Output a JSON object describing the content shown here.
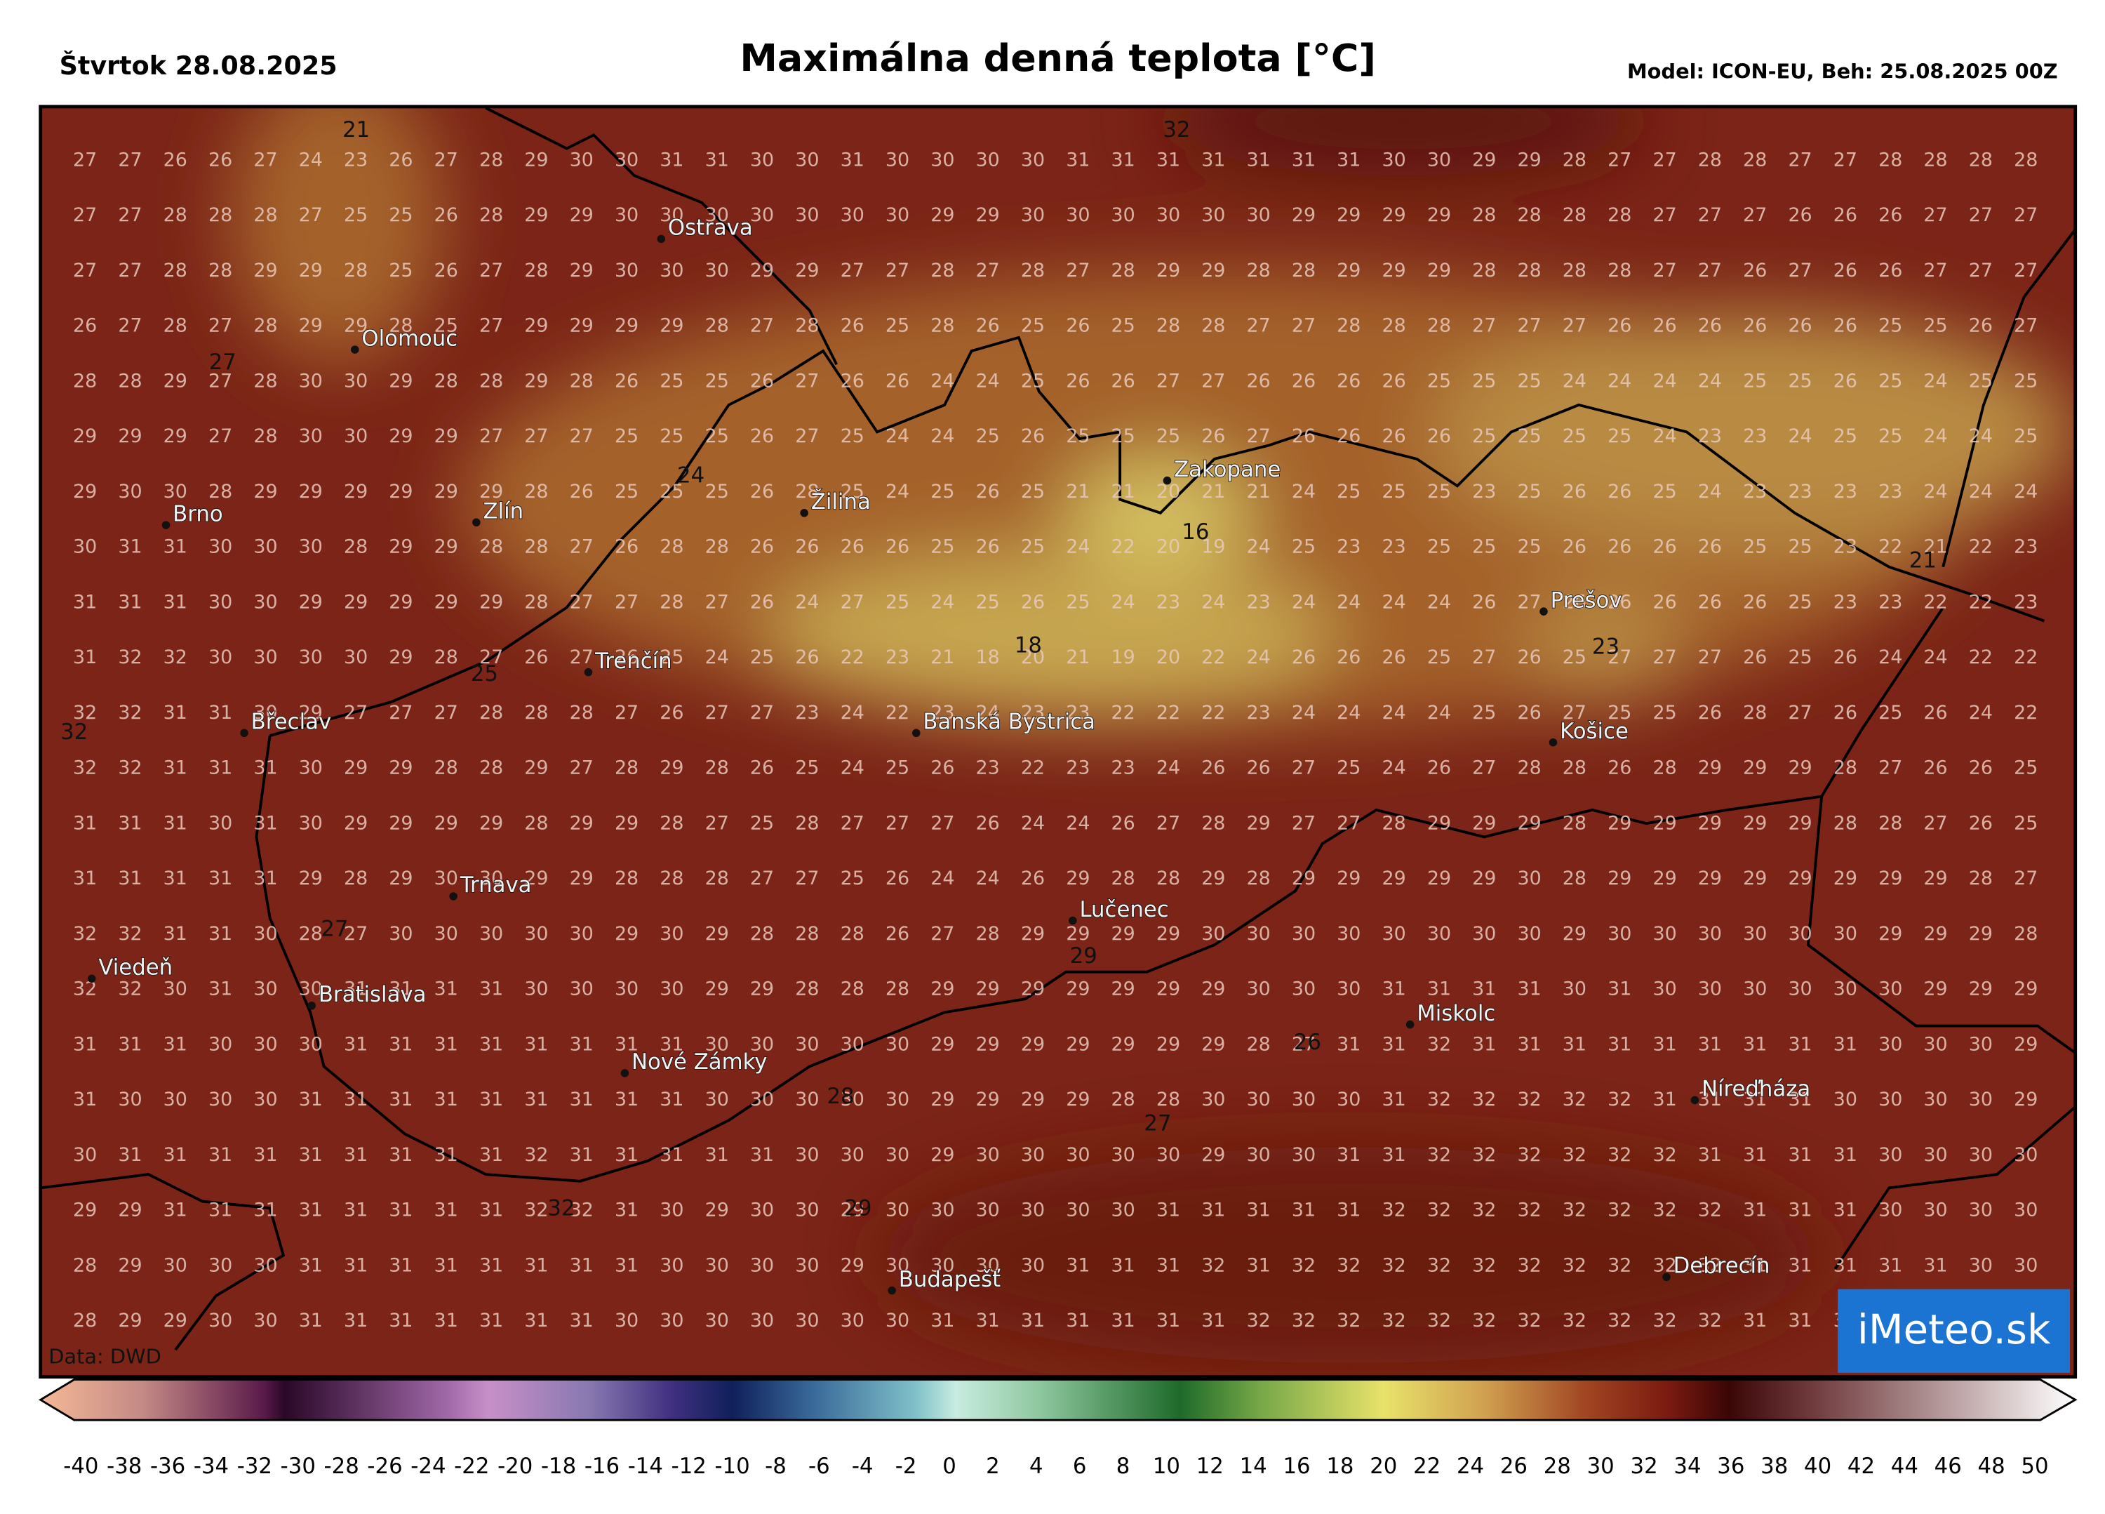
{
  "header": {
    "date": "Štvrtok 28.08.2025",
    "title": "Maximálna denná teplota [°C]",
    "model": "Model: ICON-EU, Beh: 25.08.2025 00Z"
  },
  "map": {
    "grid": [
      [
        27,
        27,
        26,
        26,
        27,
        24,
        23,
        26,
        27,
        28,
        29,
        30,
        30,
        31,
        31,
        30,
        30,
        31,
        30,
        30,
        30,
        30,
        31,
        31,
        31,
        31,
        31,
        31,
        31,
        30,
        30,
        29,
        29,
        28,
        27,
        27,
        28,
        28,
        27,
        27,
        28,
        28,
        28,
        28
      ],
      [
        27,
        27,
        28,
        28,
        28,
        27,
        25,
        25,
        26,
        28,
        29,
        29,
        30,
        30,
        30,
        30,
        30,
        30,
        30,
        29,
        29,
        30,
        30,
        30,
        30,
        30,
        30,
        29,
        29,
        29,
        29,
        28,
        28,
        28,
        28,
        27,
        27,
        27,
        26,
        26,
        26,
        27,
        27,
        27
      ],
      [
        27,
        27,
        28,
        28,
        29,
        29,
        28,
        25,
        26,
        27,
        28,
        29,
        30,
        30,
        30,
        29,
        29,
        27,
        27,
        28,
        27,
        28,
        27,
        28,
        29,
        29,
        28,
        28,
        29,
        29,
        29,
        28,
        28,
        28,
        28,
        27,
        27,
        26,
        27,
        26,
        26,
        27,
        27,
        27
      ],
      [
        26,
        27,
        28,
        27,
        28,
        29,
        29,
        28,
        25,
        27,
        29,
        29,
        29,
        29,
        28,
        27,
        28,
        26,
        25,
        28,
        26,
        25,
        26,
        25,
        28,
        28,
        27,
        27,
        28,
        28,
        28,
        27,
        27,
        27,
        26,
        26,
        26,
        26,
        26,
        26,
        25,
        25,
        26,
        27
      ],
      [
        28,
        28,
        29,
        27,
        28,
        30,
        30,
        29,
        28,
        28,
        29,
        28,
        26,
        25,
        25,
        26,
        27,
        26,
        26,
        24,
        24,
        25,
        26,
        26,
        27,
        27,
        26,
        26,
        26,
        26,
        25,
        25,
        25,
        24,
        24,
        24,
        24,
        25,
        25,
        26,
        25,
        24,
        25,
        25
      ],
      [
        29,
        29,
        29,
        27,
        28,
        30,
        30,
        29,
        29,
        27,
        27,
        27,
        25,
        25,
        25,
        26,
        27,
        25,
        24,
        24,
        25,
        26,
        25,
        25,
        25,
        26,
        27,
        26,
        26,
        26,
        26,
        25,
        25,
        25,
        25,
        24,
        23,
        23,
        24,
        25,
        25,
        24,
        24,
        25
      ],
      [
        29,
        30,
        30,
        28,
        29,
        29,
        29,
        29,
        29,
        29,
        28,
        26,
        25,
        25,
        25,
        26,
        28,
        25,
        24,
        25,
        26,
        25,
        21,
        21,
        20,
        21,
        21,
        24,
        25,
        25,
        25,
        23,
        25,
        26,
        26,
        25,
        24,
        23,
        23,
        23,
        23,
        24,
        24,
        24
      ],
      [
        30,
        31,
        31,
        30,
        30,
        30,
        28,
        29,
        29,
        28,
        28,
        27,
        26,
        28,
        28,
        26,
        26,
        26,
        26,
        25,
        26,
        25,
        24,
        22,
        20,
        19,
        24,
        25,
        23,
        23,
        25,
        25,
        25,
        26,
        26,
        26,
        26,
        25,
        25,
        23,
        22,
        21,
        22,
        23
      ],
      [
        31,
        31,
        31,
        30,
        30,
        29,
        29,
        29,
        29,
        29,
        28,
        27,
        27,
        28,
        27,
        26,
        24,
        27,
        25,
        24,
        25,
        26,
        25,
        24,
        23,
        24,
        23,
        24,
        24,
        24,
        24,
        26,
        27,
        26,
        26,
        26,
        26,
        26,
        25,
        23,
        23,
        22,
        22,
        23
      ],
      [
        31,
        32,
        32,
        30,
        30,
        30,
        30,
        29,
        28,
        27,
        26,
        27,
        26,
        25,
        24,
        25,
        26,
        22,
        23,
        21,
        18,
        20,
        21,
        19,
        20,
        22,
        24,
        26,
        26,
        26,
        25,
        27,
        26,
        25,
        27,
        27,
        27,
        26,
        25,
        26,
        24,
        24,
        22,
        22
      ],
      [
        32,
        32,
        31,
        31,
        30,
        29,
        27,
        27,
        27,
        28,
        28,
        28,
        27,
        26,
        27,
        27,
        23,
        24,
        22,
        23,
        24,
        23,
        23,
        22,
        22,
        22,
        23,
        24,
        24,
        24,
        24,
        25,
        26,
        27,
        25,
        25,
        26,
        28,
        27,
        26,
        25,
        26,
        24,
        22
      ],
      [
        32,
        32,
        31,
        31,
        31,
        30,
        29,
        29,
        28,
        28,
        29,
        27,
        28,
        29,
        28,
        26,
        25,
        24,
        25,
        26,
        23,
        22,
        23,
        23,
        24,
        26,
        26,
        27,
        25,
        24,
        26,
        27,
        28,
        28,
        26,
        28,
        29,
        29,
        29,
        28,
        27,
        26,
        26,
        25
      ],
      [
        31,
        31,
        31,
        30,
        31,
        30,
        29,
        29,
        29,
        29,
        28,
        29,
        29,
        28,
        27,
        25,
        28,
        27,
        27,
        27,
        26,
        24,
        24,
        26,
        27,
        28,
        29,
        27,
        27,
        28,
        29,
        29,
        29,
        28,
        29,
        29,
        29,
        29,
        29,
        28,
        28,
        27,
        26,
        25
      ],
      [
        31,
        31,
        31,
        31,
        31,
        29,
        28,
        29,
        30,
        30,
        29,
        29,
        28,
        28,
        28,
        27,
        27,
        25,
        26,
        24,
        24,
        26,
        29,
        28,
        28,
        29,
        28,
        29,
        29,
        29,
        29,
        29,
        30,
        28,
        29,
        29,
        29,
        29,
        29,
        29,
        29,
        29,
        28,
        27
      ],
      [
        32,
        32,
        31,
        31,
        30,
        28,
        27,
        30,
        30,
        30,
        30,
        30,
        29,
        30,
        29,
        28,
        28,
        28,
        26,
        27,
        28,
        29,
        29,
        29,
        29,
        30,
        30,
        30,
        30,
        30,
        30,
        30,
        30,
        29,
        30,
        30,
        30,
        30,
        30,
        30,
        29,
        29,
        29,
        28
      ],
      [
        32,
        32,
        30,
        31,
        30,
        30,
        31,
        31,
        31,
        31,
        30,
        30,
        30,
        30,
        29,
        29,
        28,
        28,
        28,
        29,
        29,
        29,
        29,
        29,
        29,
        29,
        30,
        30,
        30,
        31,
        31,
        31,
        31,
        30,
        31,
        30,
        30,
        30,
        30,
        30,
        30,
        29,
        29,
        29
      ],
      [
        31,
        31,
        31,
        30,
        30,
        30,
        31,
        31,
        31,
        31,
        31,
        31,
        31,
        31,
        30,
        30,
        30,
        30,
        30,
        29,
        29,
        29,
        29,
        29,
        29,
        29,
        28,
        27,
        31,
        31,
        32,
        31,
        31,
        31,
        31,
        31,
        31,
        31,
        31,
        31,
        30,
        30,
        30,
        29
      ],
      [
        31,
        30,
        30,
        30,
        30,
        31,
        31,
        31,
        31,
        31,
        31,
        31,
        31,
        31,
        30,
        30,
        30,
        30,
        30,
        29,
        29,
        29,
        29,
        28,
        28,
        30,
        30,
        30,
        30,
        31,
        32,
        32,
        32,
        32,
        32,
        31,
        31,
        31,
        31,
        30,
        30,
        30,
        30,
        29
      ],
      [
        30,
        31,
        31,
        31,
        31,
        31,
        31,
        31,
        31,
        31,
        32,
        31,
        31,
        31,
        31,
        31,
        30,
        30,
        30,
        29,
        30,
        30,
        30,
        30,
        30,
        29,
        30,
        30,
        31,
        31,
        32,
        32,
        32,
        32,
        32,
        32,
        31,
        31,
        31,
        31,
        30,
        30,
        30,
        30
      ],
      [
        29,
        29,
        31,
        31,
        31,
        31,
        31,
        31,
        31,
        31,
        32,
        32,
        31,
        30,
        29,
        30,
        30,
        29,
        30,
        30,
        30,
        30,
        30,
        30,
        31,
        31,
        31,
        31,
        31,
        32,
        32,
        32,
        32,
        32,
        32,
        32,
        32,
        31,
        31,
        31,
        30,
        30,
        30,
        30
      ],
      [
        28,
        29,
        30,
        30,
        30,
        31,
        31,
        31,
        31,
        31,
        31,
        31,
        31,
        30,
        30,
        30,
        30,
        29,
        30,
        30,
        30,
        30,
        31,
        31,
        31,
        32,
        31,
        32,
        32,
        32,
        32,
        32,
        32,
        32,
        32,
        32,
        32,
        31,
        31,
        31,
        31,
        31,
        30,
        30
      ],
      [
        28,
        29,
        29,
        30,
        30,
        31,
        31,
        31,
        31,
        31,
        31,
        31,
        30,
        30,
        30,
        30,
        30,
        30,
        30,
        31,
        31,
        31,
        31,
        31,
        31,
        31,
        32,
        32,
        32,
        32,
        32,
        32,
        32,
        32,
        32,
        32,
        32,
        31,
        31,
        31
      ]
    ],
    "contour_labels": [
      21,
      32,
      27,
      24,
      16,
      18,
      25,
      32,
      27,
      29,
      26,
      28,
      27,
      32,
      29,
      23,
      21
    ],
    "cities": [
      "Ostrava",
      "Olomouc",
      "Brno",
      "Zlín",
      "Žilina",
      "Zakopane",
      "Trenčín",
      "Břeclav",
      "Banská Bystrica",
      "Prešov",
      "Košice",
      "Trnava",
      "Lučenec",
      "Viedeň",
      "Bratislava",
      "Miskolc",
      "Nové Zámky",
      "Níreďháza",
      "Budapešť",
      "Debrecín"
    ],
    "source": "Data: DWD",
    "logo": "iMeteo.sk"
  },
  "colorbar": {
    "ticks": [
      -40,
      -38,
      -36,
      -34,
      -32,
      -30,
      -28,
      -26,
      -24,
      -22,
      -20,
      -18,
      -16,
      -14,
      -12,
      -10,
      -8,
      -6,
      -4,
      -2,
      0,
      2,
      4,
      6,
      8,
      10,
      12,
      14,
      16,
      18,
      20,
      22,
      24,
      26,
      28,
      30,
      32,
      34,
      36,
      38,
      40,
      42,
      44,
      46,
      48,
      50
    ]
  }
}
